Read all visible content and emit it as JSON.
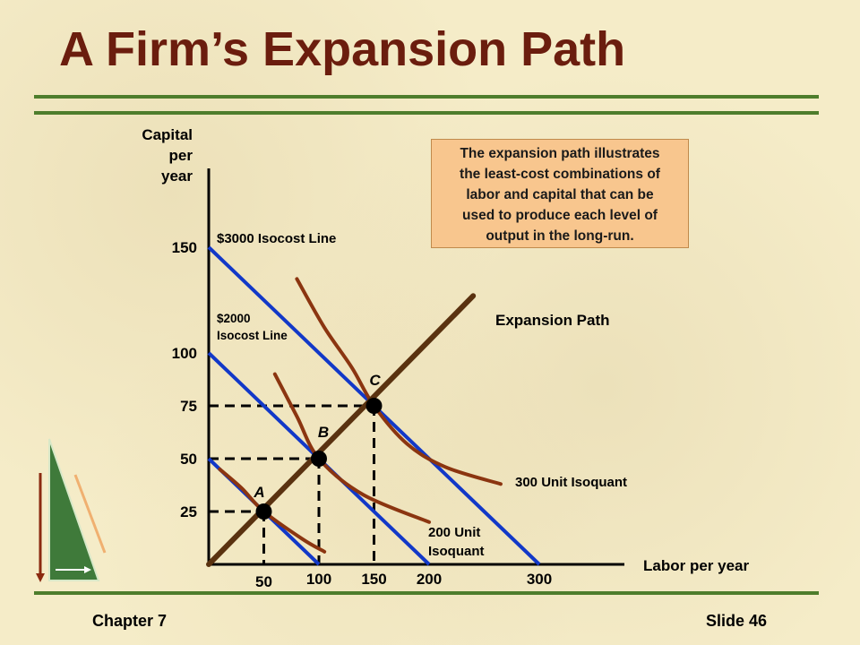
{
  "slide": {
    "title": "A Firm’s Expansion Path",
    "footer_left": "Chapter 7",
    "footer_right": "Slide 46",
    "colors": {
      "title": "#6b1d0e",
      "rule": "#4e7d2c",
      "isocost": "#1238c8",
      "isoquant": "#8b3510",
      "expansion": "#5a3210",
      "note_bg": "#f8c68e"
    }
  },
  "note": {
    "lines": [
      "The expansion path illustrates",
      "the least-cost combinations of",
      "labor and capital that can be",
      "used to produce each level of",
      "output in the long-run."
    ]
  },
  "chart_data": {
    "type": "line",
    "xlabel": "Labor per year",
    "ylabel_lines": [
      "Capital",
      "per",
      "year"
    ],
    "x_ticks": [
      "50",
      "100",
      "150",
      "200",
      "300"
    ],
    "y_ticks": [
      "25",
      "50",
      "75",
      "100",
      "150"
    ],
    "x_tick_values": [
      50,
      100,
      150,
      200,
      300
    ],
    "y_tick_values": [
      25,
      50,
      75,
      100,
      150
    ],
    "isocost_lines": [
      {
        "label": "",
        "points": [
          [
            0,
            50
          ],
          [
            100,
            0
          ]
        ]
      },
      {
        "label_lines": [
          "$2000",
          "Isocost Line"
        ],
        "points": [
          [
            0,
            100
          ],
          [
            200,
            0
          ]
        ]
      },
      {
        "label": "$3000 Isocost Line",
        "points": [
          [
            0,
            150
          ],
          [
            300,
            0
          ]
        ]
      }
    ],
    "isoquants": [
      {
        "label": "",
        "points": [
          [
            10,
            45
          ],
          [
            30,
            36
          ],
          [
            50,
            25
          ],
          [
            85,
            12
          ],
          [
            105,
            6
          ]
        ]
      },
      {
        "label_lines": [
          "200 Unit",
          "Isoquant"
        ],
        "points": [
          [
            60,
            90
          ],
          [
            80,
            70
          ],
          [
            100,
            50
          ],
          [
            140,
            33
          ],
          [
            200,
            20
          ]
        ]
      },
      {
        "label": "300 Unit Isoquant",
        "points": [
          [
            80,
            135
          ],
          [
            105,
            112
          ],
          [
            130,
            93
          ],
          [
            150,
            75
          ],
          [
            180,
            57
          ],
          [
            215,
            46
          ],
          [
            265,
            38
          ]
        ]
      }
    ],
    "expansion_path": {
      "label": "Expansion Path",
      "points": [
        [
          0,
          0
        ],
        [
          240,
          127
        ]
      ]
    },
    "points": [
      {
        "label": "A",
        "x": 50,
        "y": 25
      },
      {
        "label": "B",
        "x": 100,
        "y": 50
      },
      {
        "label": "C",
        "x": 150,
        "y": 75
      }
    ],
    "xlim": [
      0,
      330
    ],
    "ylim": [
      0,
      160
    ]
  }
}
